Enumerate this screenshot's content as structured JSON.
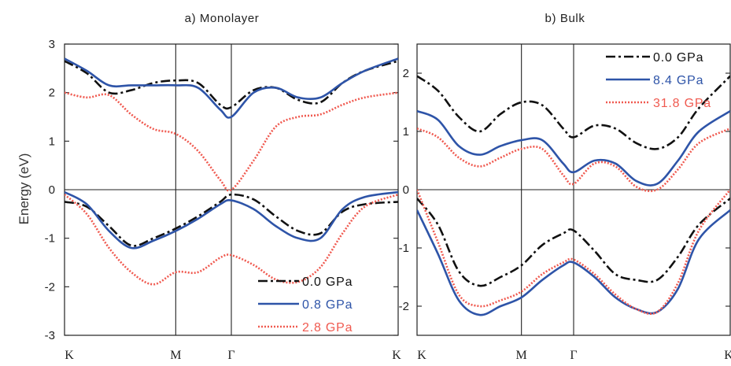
{
  "ylabel": "Energy (eV)",
  "chart_data": [
    {
      "type": "line",
      "title": "a) Monolayer",
      "ylabel": "Energy (eV)",
      "ylim": [
        -3,
        3
      ],
      "yticks": [
        -3,
        -2,
        -1,
        0,
        1,
        2,
        3
      ],
      "xlim": [
        0,
        3
      ],
      "kpoints": [
        {
          "label": "K",
          "x": 0
        },
        {
          "label": "M",
          "x": 1
        },
        {
          "label": "Γ",
          "x": 1.5
        },
        {
          "label": "K",
          "x": 3
        }
      ],
      "grid": false,
      "legend_position": "bottom-right",
      "series": [
        {
          "name": "0.0 GPa",
          "color": "#111111",
          "style": "dashdot",
          "bands": [
            {
              "x": [
                0,
                0.2,
                0.4,
                0.6,
                0.8,
                1.0,
                1.2,
                1.4,
                1.5,
                1.7,
                1.9,
                2.1,
                2.3,
                2.5,
                2.7,
                3.0
              ],
              "y": [
                2.65,
                2.4,
                2.0,
                2.05,
                2.2,
                2.25,
                2.2,
                1.75,
                1.7,
                2.05,
                2.1,
                1.85,
                1.8,
                2.2,
                2.45,
                2.65
              ]
            },
            {
              "x": [
                0,
                0.2,
                0.4,
                0.6,
                0.8,
                1.0,
                1.2,
                1.4,
                1.5,
                1.7,
                1.9,
                2.1,
                2.3,
                2.5,
                2.7,
                3.0
              ],
              "y": [
                -0.25,
                -0.35,
                -0.75,
                -1.15,
                -1.0,
                -0.8,
                -0.55,
                -0.25,
                -0.1,
                -0.2,
                -0.55,
                -0.85,
                -0.9,
                -0.45,
                -0.3,
                -0.25
              ]
            }
          ]
        },
        {
          "name": "0.8 GPa",
          "color": "#2e54a8",
          "style": "solid",
          "bands": [
            {
              "x": [
                0,
                0.2,
                0.4,
                0.6,
                0.8,
                1.0,
                1.2,
                1.4,
                1.5,
                1.7,
                1.9,
                2.1,
                2.3,
                2.5,
                2.7,
                3.0
              ],
              "y": [
                2.7,
                2.45,
                2.15,
                2.15,
                2.15,
                2.15,
                2.1,
                1.65,
                1.5,
                2.0,
                2.1,
                1.9,
                1.9,
                2.2,
                2.45,
                2.7
              ]
            },
            {
              "x": [
                0,
                0.2,
                0.4,
                0.6,
                0.8,
                1.0,
                1.2,
                1.4,
                1.5,
                1.7,
                1.9,
                2.1,
                2.3,
                2.5,
                2.7,
                3.0
              ],
              "y": [
                -0.05,
                -0.3,
                -0.85,
                -1.2,
                -1.05,
                -0.85,
                -0.6,
                -0.3,
                -0.22,
                -0.4,
                -0.75,
                -1.0,
                -1.0,
                -0.4,
                -0.15,
                -0.05
              ]
            }
          ]
        },
        {
          "name": "2.8 GPa",
          "color": "#f05a50",
          "style": "dotted",
          "bands": [
            {
              "x": [
                0,
                0.2,
                0.4,
                0.6,
                0.8,
                1.0,
                1.2,
                1.4,
                1.5,
                1.7,
                1.9,
                2.1,
                2.3,
                2.5,
                2.7,
                3.0
              ],
              "y": [
                2.0,
                1.9,
                1.95,
                1.55,
                1.25,
                1.15,
                0.8,
                0.2,
                0.0,
                0.6,
                1.3,
                1.5,
                1.55,
                1.75,
                1.9,
                2.0
              ]
            },
            {
              "x": [
                0,
                0.2,
                0.4,
                0.6,
                0.8,
                1.0,
                1.2,
                1.4,
                1.5,
                1.7,
                1.9,
                2.1,
                2.3,
                2.5,
                2.7,
                3.0
              ],
              "y": [
                -0.1,
                -0.5,
                -1.2,
                -1.7,
                -1.95,
                -1.7,
                -1.7,
                -1.4,
                -1.35,
                -1.55,
                -1.85,
                -1.9,
                -1.6,
                -0.9,
                -0.35,
                -0.1
              ]
            }
          ]
        }
      ]
    },
    {
      "type": "line",
      "title": "b) Bulk",
      "ylabel": "",
      "ylim": [
        -2.5,
        2.5
      ],
      "yticks": [
        -2,
        -1,
        0,
        1,
        2
      ],
      "xlim": [
        0,
        3
      ],
      "kpoints": [
        {
          "label": "K",
          "x": 0
        },
        {
          "label": "M",
          "x": 1
        },
        {
          "label": "Γ",
          "x": 1.5
        },
        {
          "label": "K",
          "x": 3
        }
      ],
      "grid": false,
      "legend_position": "top-right",
      "series": [
        {
          "name": "0.0 GPa",
          "color": "#111111",
          "style": "dashdot",
          "bands": [
            {
              "x": [
                0,
                0.2,
                0.4,
                0.6,
                0.8,
                1.0,
                1.2,
                1.4,
                1.5,
                1.7,
                1.9,
                2.1,
                2.3,
                2.5,
                2.7,
                3.0
              ],
              "y": [
                1.95,
                1.7,
                1.25,
                1.0,
                1.3,
                1.5,
                1.45,
                1.05,
                0.9,
                1.1,
                1.05,
                0.8,
                0.7,
                0.9,
                1.4,
                1.95
              ]
            },
            {
              "x": [
                0,
                0.2,
                0.4,
                0.6,
                0.8,
                1.0,
                1.2,
                1.4,
                1.5,
                1.7,
                1.9,
                2.1,
                2.3,
                2.5,
                2.7,
                3.0
              ],
              "y": [
                -0.15,
                -0.6,
                -1.4,
                -1.65,
                -1.5,
                -1.3,
                -0.95,
                -0.75,
                -0.7,
                -1.05,
                -1.45,
                -1.55,
                -1.55,
                -1.15,
                -0.6,
                -0.15
              ]
            }
          ]
        },
        {
          "name": "8.4 GPa",
          "color": "#2e54a8",
          "style": "solid",
          "bands": [
            {
              "x": [
                0,
                0.2,
                0.4,
                0.6,
                0.8,
                1.0,
                1.2,
                1.4,
                1.5,
                1.7,
                1.9,
                2.1,
                2.3,
                2.5,
                2.7,
                3.0
              ],
              "y": [
                1.35,
                1.2,
                0.75,
                0.6,
                0.75,
                0.85,
                0.85,
                0.45,
                0.3,
                0.5,
                0.45,
                0.15,
                0.1,
                0.5,
                1.0,
                1.35
              ]
            },
            {
              "x": [
                0,
                0.2,
                0.4,
                0.6,
                0.8,
                1.0,
                1.2,
                1.4,
                1.5,
                1.7,
                1.9,
                2.1,
                2.3,
                2.5,
                2.7,
                3.0
              ],
              "y": [
                -0.35,
                -1.1,
                -1.9,
                -2.15,
                -2.0,
                -1.85,
                -1.55,
                -1.3,
                -1.25,
                -1.5,
                -1.85,
                -2.05,
                -2.1,
                -1.7,
                -0.85,
                -0.35
              ]
            }
          ]
        },
        {
          "name": "31.8 GPa",
          "color": "#f05a50",
          "style": "dotted",
          "bands": [
            {
              "x": [
                0,
                0.2,
                0.4,
                0.6,
                0.8,
                1.0,
                1.2,
                1.4,
                1.5,
                1.7,
                1.9,
                2.1,
                2.3,
                2.5,
                2.7,
                3.0
              ],
              "y": [
                1.05,
                0.9,
                0.55,
                0.4,
                0.55,
                0.7,
                0.7,
                0.25,
                0.1,
                0.45,
                0.4,
                0.05,
                0.0,
                0.35,
                0.8,
                1.05
              ]
            },
            {
              "x": [
                0,
                0.2,
                0.4,
                0.6,
                0.8,
                1.0,
                1.2,
                1.4,
                1.5,
                1.7,
                1.9,
                2.1,
                2.3,
                2.5,
                2.7,
                3.0
              ],
              "y": [
                0.0,
                -0.9,
                -1.8,
                -2.0,
                -1.9,
                -1.75,
                -1.45,
                -1.25,
                -1.2,
                -1.45,
                -1.8,
                -2.05,
                -2.1,
                -1.6,
                -0.7,
                0.0
              ]
            }
          ]
        }
      ]
    }
  ]
}
